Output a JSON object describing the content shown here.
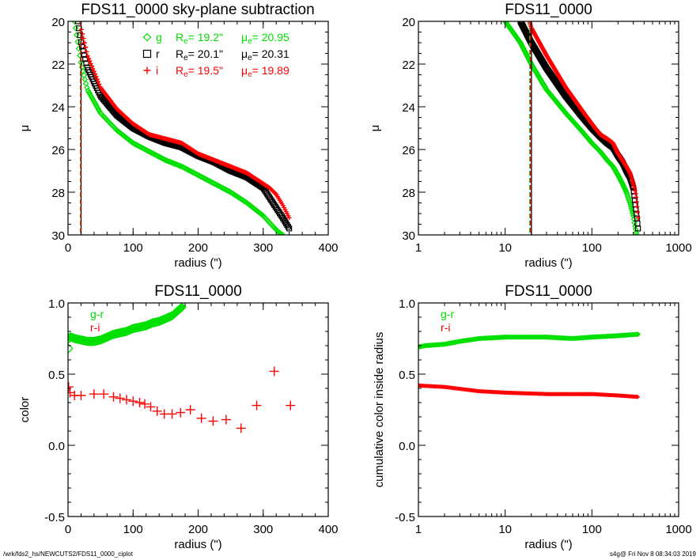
{
  "footer": {
    "path": "/wrk/fds2_hs/NEWCUTS2/FDS11_0000_ciplot",
    "stamp": "s4g@  Fri Nov  8 08:34:03 2019"
  },
  "colors": {
    "g": "#00e000",
    "r": "#000000",
    "i": "#ff0000",
    "gr": "#00e000",
    "ri": "#ff0000"
  },
  "chart_data": [
    {
      "type": "scatter",
      "title": "FDS11_0000 sky-plane subtraction",
      "xlabel": "radius (\")",
      "ylabel": "μ",
      "xscale": "linear",
      "xlim": [
        0,
        400
      ],
      "ylim": [
        30,
        20
      ],
      "xticks": [
        "0",
        "100",
        "200",
        "300",
        "400"
      ],
      "xtick_values": [
        0,
        100,
        200,
        300,
        400
      ],
      "yticks": [
        "20",
        "22",
        "24",
        "26",
        "28",
        "30"
      ],
      "ytick_values": [
        20,
        22,
        24,
        26,
        28,
        30
      ],
      "legend_position": "top-right",
      "legend": [
        {
          "band": "g",
          "marker": "diamond",
          "re_label": "R",
          "mu_label": "μ",
          "sub": "e",
          "re": "=  19.2\"",
          "mu": "= 20.95"
        },
        {
          "band": "r",
          "marker": "square",
          "re_label": "R",
          "mu_label": "μ",
          "sub": "e",
          "re": "=  20.1\"",
          "mu": "= 20.31"
        },
        {
          "band": "i",
          "marker": "plus",
          "re_label": "R",
          "mu_label": "μ",
          "sub": "e",
          "re": "=  19.5\"",
          "mu": "= 19.89"
        }
      ],
      "vlines": [
        {
          "band": "g",
          "x": 19.2
        },
        {
          "band": "r",
          "x": 20.1
        },
        {
          "band": "i",
          "x": 19.5
        }
      ],
      "series": [
        {
          "name": "g",
          "marker": "diamond",
          "x": [
            10,
            15,
            20,
            30,
            50,
            75,
            100,
            125,
            150,
            175,
            200,
            225,
            250,
            275,
            300,
            315,
            325,
            330
          ],
          "y": [
            20,
            21,
            22,
            23.2,
            24.3,
            25.1,
            25.7,
            26.1,
            26.5,
            26.8,
            27.2,
            27.6,
            28.0,
            28.5,
            29.1,
            29.6,
            29.9,
            30.0
          ]
        },
        {
          "name": "r",
          "marker": "square",
          "x": [
            15,
            20,
            30,
            50,
            75,
            100,
            125,
            150,
            175,
            200,
            225,
            250,
            275,
            300,
            315,
            330,
            340
          ],
          "y": [
            20,
            21,
            22.2,
            23.5,
            24.4,
            25.0,
            25.4,
            25.7,
            25.9,
            26.3,
            26.6,
            27.0,
            27.3,
            27.8,
            28.5,
            29.2,
            29.7
          ]
        },
        {
          "name": "i",
          "marker": "plus",
          "x": [
            19,
            20,
            30,
            50,
            75,
            100,
            125,
            150,
            175,
            200,
            225,
            250,
            275,
            290,
            300,
            310,
            320,
            330,
            340
          ],
          "y": [
            20,
            20.3,
            21.6,
            23.1,
            24.1,
            24.8,
            25.3,
            25.5,
            25.7,
            26.2,
            26.5,
            26.8,
            27.1,
            27.4,
            27.6,
            27.8,
            28.1,
            28.6,
            29.2
          ]
        }
      ]
    },
    {
      "type": "scatter",
      "title": "FDS11_0000",
      "xlabel": "radius (\")",
      "ylabel": "μ",
      "xscale": "log",
      "xlim": [
        1,
        1000
      ],
      "ylim": [
        30,
        20
      ],
      "xticks": [
        "1",
        "10",
        "100",
        "1000"
      ],
      "xtick_values": [
        1,
        10,
        100,
        1000
      ],
      "yticks": [
        "20",
        "22",
        "24",
        "26",
        "28",
        "30"
      ],
      "ytick_values": [
        20,
        22,
        24,
        26,
        28,
        30
      ],
      "vlines": [
        {
          "band": "g",
          "x": 19.2
        },
        {
          "band": "r",
          "x": 20.1
        },
        {
          "band": "i",
          "x": 19.5
        }
      ],
      "series_ref": 0
    },
    {
      "type": "scatter",
      "title": "FDS11_0000",
      "xlabel": "radius (\")",
      "ylabel": "color",
      "xscale": "linear",
      "xlim": [
        0,
        400
      ],
      "ylim": [
        -0.5,
        1.0
      ],
      "xticks": [
        "0",
        "100",
        "200",
        "300",
        "400"
      ],
      "xtick_values": [
        0,
        100,
        200,
        300,
        400
      ],
      "yticks": [
        "-0.5",
        "0.0",
        "0.5",
        "1.0"
      ],
      "ytick_values": [
        -0.5,
        0,
        0.5,
        1.0
      ],
      "legend_position": "top-left",
      "legend": [
        {
          "name": "g-r",
          "key": "gr"
        },
        {
          "name": "r-i",
          "key": "ri"
        }
      ],
      "series": [
        {
          "name": "g-r",
          "key": "gr",
          "marker": "diamond",
          "x": [
            1,
            2,
            5,
            10,
            20,
            30,
            40,
            50,
            60,
            70,
            80,
            90,
            100,
            110,
            120,
            130,
            140,
            150,
            160,
            175
          ],
          "y": [
            0.68,
            0.76,
            0.76,
            0.75,
            0.74,
            0.73,
            0.73,
            0.74,
            0.76,
            0.78,
            0.79,
            0.8,
            0.82,
            0.83,
            0.84,
            0.86,
            0.87,
            0.89,
            0.91,
            0.97
          ]
        },
        {
          "name": "r-i",
          "key": "ri",
          "marker": "plus",
          "x": [
            1,
            3,
            10,
            20,
            40,
            55,
            70,
            80,
            90,
            100,
            110,
            118,
            127,
            137,
            148,
            160,
            173,
            188,
            205,
            223,
            243,
            266,
            290,
            317,
            342
          ],
          "y": [
            0.41,
            0.37,
            0.35,
            0.35,
            0.36,
            0.36,
            0.34,
            0.33,
            0.32,
            0.31,
            0.3,
            0.29,
            0.27,
            0.24,
            0.22,
            0.22,
            0.23,
            0.25,
            0.19,
            0.17,
            0.18,
            0.12,
            0.28,
            0.52,
            0.28
          ]
        }
      ]
    },
    {
      "type": "scatter",
      "title": "FDS11_0000",
      "xlabel": "radius (\")",
      "ylabel": "cumulative color inside radius",
      "xscale": "log",
      "xlim": [
        1,
        1000
      ],
      "ylim": [
        -0.5,
        1.0
      ],
      "xticks": [
        "1",
        "10",
        "100",
        "1000"
      ],
      "xtick_values": [
        1,
        10,
        100,
        1000
      ],
      "yticks": [
        "-0.5",
        "0.0",
        "0.5",
        "1.0"
      ],
      "ytick_values": [
        -0.5,
        0,
        0.5,
        1.0
      ],
      "legend_position": "top-left",
      "legend": [
        {
          "name": "g-r",
          "key": "gr"
        },
        {
          "name": "r-i",
          "key": "ri"
        }
      ],
      "series": [
        {
          "name": "g-r",
          "key": "gr",
          "marker": "diamond",
          "x": [
            1,
            1.2,
            2,
            3,
            5,
            10,
            30,
            60,
            100,
            200,
            340
          ],
          "y": [
            0.69,
            0.7,
            0.71,
            0.73,
            0.75,
            0.76,
            0.76,
            0.75,
            0.76,
            0.77,
            0.78
          ]
        },
        {
          "name": "r-i",
          "key": "ri",
          "marker": "plus",
          "x": [
            1,
            2,
            5,
            10,
            30,
            100,
            200,
            340
          ],
          "y": [
            0.42,
            0.41,
            0.38,
            0.37,
            0.36,
            0.36,
            0.35,
            0.34
          ]
        }
      ]
    }
  ]
}
